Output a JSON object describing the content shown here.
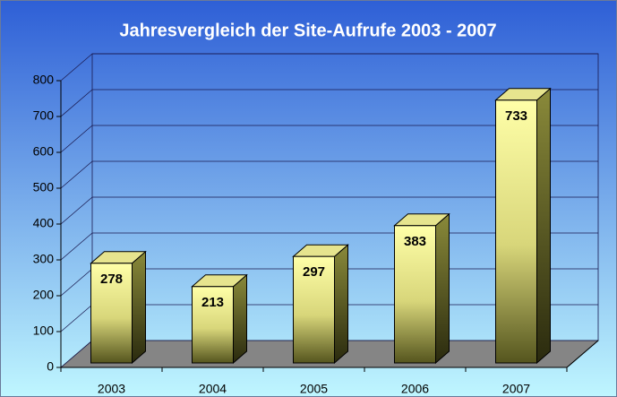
{
  "chart_data": {
    "type": "bar3d",
    "title": "Jahresvergleich der Site-Aufrufe 2003 - 2007",
    "categories": [
      "2003",
      "2004",
      "2005",
      "2006",
      "2007"
    ],
    "values": [
      278,
      213,
      297,
      383,
      733
    ],
    "color": "#ffffa8",
    "ylim": [
      0,
      800
    ],
    "yticks": [
      0,
      100,
      200,
      300,
      400,
      500,
      600,
      700,
      800
    ],
    "grid": true
  }
}
